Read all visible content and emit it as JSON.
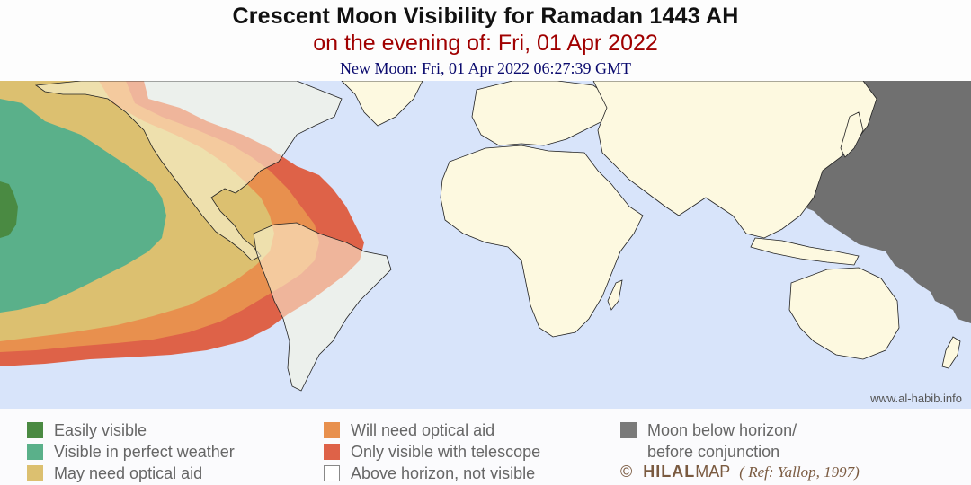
{
  "header": {
    "title": "Crescent Moon Visibility for Ramadan 1443 AH",
    "subtitle": "on the evening of: Fri, 01 Apr 2022",
    "new_moon": "New Moon: Fri, 01 Apr 2022 06:27:39 GMT"
  },
  "map": {
    "credit": "www.al-habib.info",
    "colors": {
      "ocean": "#d8e4fa",
      "land": "#fdf9e0",
      "easily_visible": "#4a8a42",
      "perfect_weather": "#5ab08a",
      "may_need_optical": "#dcc070",
      "will_need_optical": "#e8904e",
      "telescope_only": "#de6248",
      "below_horizon": "#707070"
    }
  },
  "legend": {
    "items": [
      {
        "label": "Easily visible",
        "color": "#4a8a42"
      },
      {
        "label": "Visible in perfect weather",
        "color": "#5ab08a"
      },
      {
        "label": "May need optical aid",
        "color": "#dcc070"
      },
      {
        "label": "Will need optical aid",
        "color": "#e8904e"
      },
      {
        "label": "Only visible with telescope",
        "color": "#de6248"
      },
      {
        "label": "Above horizon, not visible",
        "color": "#ffffff"
      },
      {
        "label": "Moon below horizon/",
        "color": "#7a7a7a"
      },
      {
        "label": "before conjunction",
        "color": ""
      }
    ],
    "copyright_symbol": "©",
    "brand_part1": "HILAL",
    "brand_part2": "MAP",
    "reference": "( Ref: Yallop, 1997)"
  }
}
